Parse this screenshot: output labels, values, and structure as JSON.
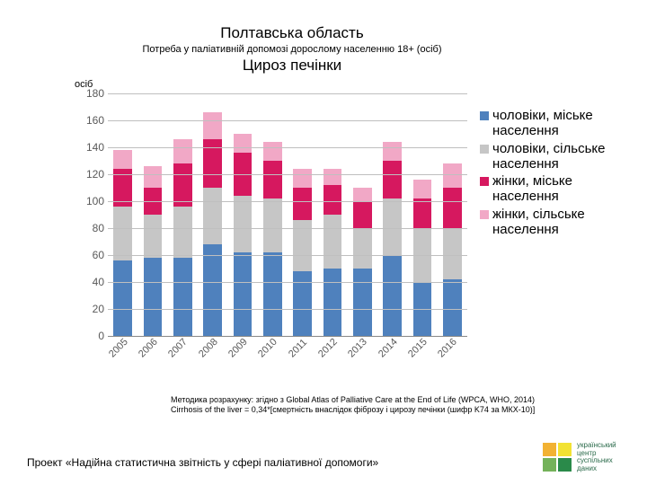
{
  "header": {
    "title1": "Полтавська область",
    "subtitle": "Потреба у паліативній допомозі дорослому населенню 18+ (осіб)",
    "title2": "Цироз печінки"
  },
  "yaxis_label": "осіб",
  "chart": {
    "type": "stacked_bar",
    "background_color": "#ffffff",
    "grid_color": "#bfbfbf",
    "axis_color": "#888888",
    "label_color": "#595959",
    "label_fontsize": 12,
    "bar_width_ratio": 0.62,
    "y": {
      "min": 0,
      "max": 180,
      "step": 20
    },
    "categories": [
      "2005",
      "2006",
      "2007",
      "2008",
      "2009",
      "2010",
      "2011",
      "2012",
      "2013",
      "2014",
      "2015",
      "2016"
    ],
    "xlabel_rotation_deg": -45,
    "series": [
      {
        "name": "чоловіки, міське населення",
        "color": "#4f81bd",
        "values": [
          56,
          58,
          58,
          68,
          62,
          62,
          48,
          50,
          50,
          60,
          40,
          42
        ]
      },
      {
        "name": "чоловіки, сільське населення",
        "color": "#c6c6c6",
        "values": [
          40,
          32,
          38,
          42,
          42,
          40,
          38,
          40,
          30,
          42,
          40,
          38
        ]
      },
      {
        "name": "жінки, міське населення",
        "color": "#d6185f",
        "values": [
          28,
          20,
          32,
          36,
          32,
          28,
          24,
          22,
          20,
          28,
          22,
          30
        ]
      },
      {
        "name": "жінки, сільське населення",
        "color": "#f1a8c6",
        "values": [
          14,
          16,
          18,
          20,
          14,
          14,
          14,
          12,
          10,
          14,
          14,
          18
        ]
      }
    ]
  },
  "legend": {
    "fontsize": 15,
    "swatch_size": 10
  },
  "methodology": {
    "line1": "Методика розрахунку: згідно з Global Atlas of Palliative Care at the End of Life (WPCA, WHO, 2014)",
    "line2": "Cirrhosis of the liver = 0,34*[смертність внаслідок фіброзу і цирозу печінки (шифр K74 за МКХ-10)]"
  },
  "footer": "Проект «Надійна статистична звітність у сфері паліативної допомоги»",
  "logo": {
    "colors": [
      "#f2b233",
      "#f2e233",
      "#74b25a",
      "#2a8a4a"
    ],
    "text": "український центр суспільних даних",
    "text_color": "#2a6a4a"
  }
}
